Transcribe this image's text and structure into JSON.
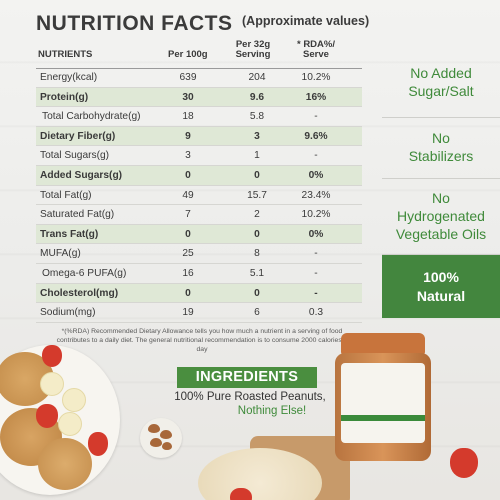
{
  "header": {
    "title": "NUTRITION FACTS",
    "subtitle": "(Approximate values)"
  },
  "columns": {
    "nutrients": "NUTRIENTS",
    "per100g": "Per 100g",
    "per32g_line1": "Per 32g",
    "per32g_line2": "Serving",
    "rda_line1": "* RDA%/",
    "rda_line2": "Serve"
  },
  "rows": [
    {
      "name": "Energy(kcal)",
      "per100g": "639",
      "per32g": "204",
      "rda": "10.2%"
    },
    {
      "name": "Protein(g)",
      "per100g": "30",
      "per32g": "9.6",
      "rda": "16%"
    },
    {
      "name": "Total Carbohydrate(g)",
      "per100g": "18",
      "per32g": "5.8",
      "rda": "-"
    },
    {
      "name": "Dietary Fiber(g)",
      "per100g": "9",
      "per32g": "3",
      "rda": "9.6%"
    },
    {
      "name": "Total Sugars(g)",
      "per100g": "3",
      "per32g": "1",
      "rda": "-"
    },
    {
      "name": "Added Sugars(g)",
      "per100g": "0",
      "per32g": "0",
      "rda": "0%"
    },
    {
      "name": "Total Fat(g)",
      "per100g": "49",
      "per32g": "15.7",
      "rda": "23.4%"
    },
    {
      "name": "Saturated Fat(g)",
      "per100g": "7",
      "per32g": "2",
      "rda": "10.2%"
    },
    {
      "name": "Trans Fat(g)",
      "per100g": "0",
      "per32g": "0",
      "rda": "0%"
    },
    {
      "name": "MUFA(g)",
      "per100g": "25",
      "per32g": "8",
      "rda": "-"
    },
    {
      "name": "Omega-6 PUFA(g)",
      "per100g": "16",
      "per32g": "5.1",
      "rda": "-"
    },
    {
      "name": "Cholesterol(mg)",
      "per100g": "0",
      "per32g": "0",
      "rda": "-"
    },
    {
      "name": "Sodium(mg)",
      "per100g": "19",
      "per32g": "6",
      "rda": "0.3"
    }
  ],
  "footnote": "*(%RDA) Recommended Dietary Allowance tells you how much a nutrient in a serving of food contributes to a daily diet. The general nutritional recommendation is to consume 2000 calories a day",
  "claims": {
    "c1_l1": "No Added",
    "c1_l2": "Sugar/Salt",
    "c2_l1": "No",
    "c2_l2": "Stabilizers",
    "c3_l1": "No",
    "c3_l2": "Hydrogenated",
    "c3_l3": "Vegetable Oils",
    "natural_l1": "100%",
    "natural_l2": "Natural"
  },
  "ingredients": {
    "badge": "INGREDIENTS",
    "line1": "100% Pure Roasted Peanuts,",
    "line2": "Nothing Else!"
  },
  "colors": {
    "accent_green": "#43863e",
    "highlight_row": "#dfe8d6",
    "claim_text": "#3f8a3a"
  }
}
